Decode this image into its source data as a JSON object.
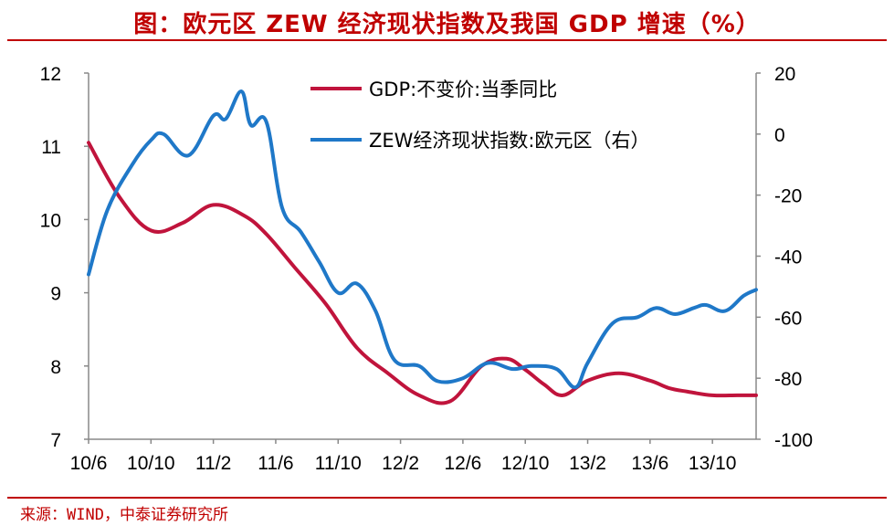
{
  "title": "图：欧元区 ZEW 经济现状指数及我国 GDP 增速（%）",
  "source": "来源：WIND，中泰证券研究所",
  "chart_data": {
    "type": "line",
    "categories": [
      "10/6",
      "10/10",
      "11/2",
      "11/6",
      "11/10",
      "12/2",
      "12/6",
      "12/10",
      "13/2",
      "13/6",
      "13/10"
    ],
    "y_left": {
      "min": 7,
      "max": 12,
      "ticks": [
        "12",
        "11",
        "10",
        "9",
        "8",
        "7"
      ]
    },
    "y_right": {
      "min": -100,
      "max": 20,
      "ticks": [
        "20",
        "0",
        "-20",
        "-40",
        "-60",
        "-80",
        "-100"
      ]
    },
    "grid": false,
    "legend_placement": "top-center",
    "series": [
      {
        "name": "GDP:不变价:当季同比",
        "axis": "left",
        "color": "#c0143c",
        "x": [
          0,
          0.5,
          1.0,
          1.5,
          2.0,
          2.5,
          2.85,
          3.3,
          3.8,
          4.3,
          4.8,
          5.3,
          5.8,
          6.3,
          6.7,
          7.0,
          7.3,
          7.6,
          8.0,
          8.5,
          9.0,
          9.3,
          9.6,
          10.0,
          10.4,
          10.7
        ],
        "values": [
          11.05,
          10.3,
          9.85,
          9.95,
          10.2,
          10.05,
          9.8,
          9.35,
          8.85,
          8.25,
          7.9,
          7.6,
          7.52,
          8.0,
          8.1,
          7.95,
          7.75,
          7.6,
          7.8,
          7.9,
          7.8,
          7.7,
          7.65,
          7.6,
          7.6,
          7.6
        ]
      },
      {
        "name": "ZEW经济现状指数:欧元区（右）",
        "axis": "right",
        "color": "#1f78c8",
        "x": [
          0,
          0.3,
          0.7,
          1.0,
          1.2,
          1.6,
          2.0,
          2.2,
          2.45,
          2.6,
          2.85,
          3.1,
          3.4,
          3.7,
          4.0,
          4.3,
          4.6,
          4.9,
          5.3,
          5.6,
          6.0,
          6.4,
          6.8,
          7.1,
          7.5,
          7.8,
          8.0,
          8.4,
          8.8,
          9.1,
          9.4,
          9.7,
          9.9,
          10.2,
          10.5,
          10.7
        ],
        "values": [
          -46,
          -25,
          -10,
          -2,
          0,
          -7,
          6,
          5,
          14,
          3,
          4,
          -24,
          -32,
          -42,
          -52,
          -49,
          -58,
          -74,
          -76,
          -81,
          -80,
          -75,
          -77,
          -76,
          -77,
          -83,
          -75,
          -62,
          -60,
          -57,
          -59,
          -57,
          -56,
          -58,
          -53,
          -51
        ]
      }
    ]
  }
}
